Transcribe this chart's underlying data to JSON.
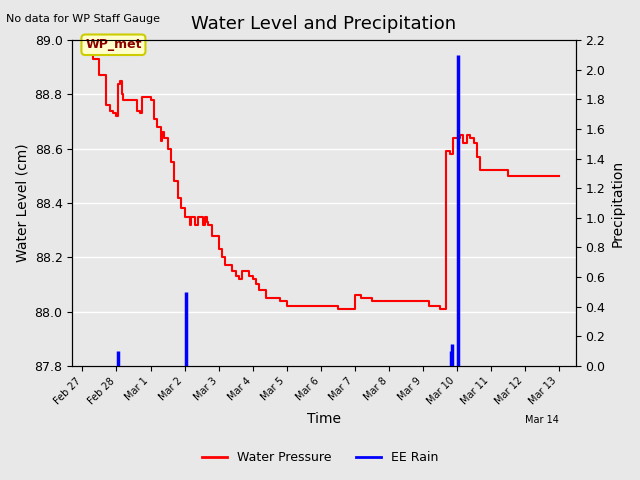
{
  "title": "Water Level and Precipitation",
  "top_left_text": "No data for WP Staff Gauge",
  "xlabel": "Time",
  "ylabel_left": "Water Level (cm)",
  "ylabel_right": "Precipitation",
  "wp_label": "WP_met",
  "ylim_left": [
    87.8,
    89.0
  ],
  "ylim_right": [
    0.0,
    2.2
  ],
  "background_color": "#e8e8e8",
  "water_pressure_color": "#ff0000",
  "ee_rain_color": "#0000ff",
  "legend_entries": [
    "Water Pressure",
    "EE Rain"
  ],
  "water_pressure_data": [
    [
      0.0,
      89.0
    ],
    [
      0.1,
      89.0
    ],
    [
      0.15,
      88.97
    ],
    [
      0.3,
      88.93
    ],
    [
      0.5,
      88.87
    ],
    [
      0.7,
      88.76
    ],
    [
      0.8,
      88.74
    ],
    [
      0.9,
      88.73
    ],
    [
      1.0,
      88.72
    ],
    [
      1.05,
      88.84
    ],
    [
      1.1,
      88.85
    ],
    [
      1.15,
      88.8
    ],
    [
      1.2,
      88.78
    ],
    [
      1.35,
      88.78
    ],
    [
      1.5,
      88.78
    ],
    [
      1.6,
      88.74
    ],
    [
      1.7,
      88.73
    ],
    [
      1.75,
      88.79
    ],
    [
      1.85,
      88.79
    ],
    [
      2.0,
      88.78
    ],
    [
      2.1,
      88.71
    ],
    [
      2.2,
      88.68
    ],
    [
      2.3,
      88.63
    ],
    [
      2.35,
      88.66
    ],
    [
      2.4,
      88.64
    ],
    [
      2.5,
      88.6
    ],
    [
      2.6,
      88.55
    ],
    [
      2.7,
      88.48
    ],
    [
      2.8,
      88.42
    ],
    [
      2.9,
      88.38
    ],
    [
      3.0,
      88.35
    ],
    [
      3.1,
      88.35
    ],
    [
      3.15,
      88.32
    ],
    [
      3.2,
      88.35
    ],
    [
      3.25,
      88.35
    ],
    [
      3.3,
      88.32
    ],
    [
      3.4,
      88.35
    ],
    [
      3.45,
      88.35
    ],
    [
      3.5,
      88.35
    ],
    [
      3.55,
      88.32
    ],
    [
      3.6,
      88.35
    ],
    [
      3.65,
      88.33
    ],
    [
      3.7,
      88.32
    ],
    [
      3.8,
      88.28
    ],
    [
      4.0,
      88.23
    ],
    [
      4.1,
      88.2
    ],
    [
      4.2,
      88.17
    ],
    [
      4.4,
      88.15
    ],
    [
      4.5,
      88.13
    ],
    [
      4.6,
      88.12
    ],
    [
      4.7,
      88.15
    ],
    [
      4.8,
      88.15
    ],
    [
      4.9,
      88.13
    ],
    [
      5.0,
      88.12
    ],
    [
      5.1,
      88.1
    ],
    [
      5.2,
      88.08
    ],
    [
      5.4,
      88.05
    ],
    [
      5.6,
      88.05
    ],
    [
      5.8,
      88.04
    ],
    [
      6.0,
      88.02
    ],
    [
      6.2,
      88.02
    ],
    [
      6.5,
      88.02
    ],
    [
      7.0,
      88.02
    ],
    [
      7.5,
      88.01
    ],
    [
      8.0,
      88.06
    ],
    [
      8.2,
      88.05
    ],
    [
      8.5,
      88.04
    ],
    [
      9.0,
      88.04
    ],
    [
      9.5,
      88.04
    ],
    [
      10.0,
      88.04
    ],
    [
      10.2,
      88.02
    ],
    [
      10.5,
      88.01
    ],
    [
      10.6,
      88.01
    ],
    [
      10.7,
      88.59
    ],
    [
      10.8,
      88.58
    ],
    [
      10.9,
      88.64
    ],
    [
      11.0,
      88.64
    ],
    [
      11.1,
      88.65
    ],
    [
      11.2,
      88.62
    ],
    [
      11.3,
      88.65
    ],
    [
      11.4,
      88.64
    ],
    [
      11.5,
      88.62
    ],
    [
      11.6,
      88.57
    ],
    [
      11.7,
      88.52
    ],
    [
      12.0,
      88.52
    ],
    [
      12.5,
      88.5
    ],
    [
      13.0,
      88.5
    ],
    [
      13.5,
      88.5
    ],
    [
      14.0,
      88.5
    ]
  ],
  "ee_rain_data": [
    [
      1.05,
      0.1
    ],
    [
      3.05,
      0.5
    ],
    [
      10.82,
      0.1
    ],
    [
      10.87,
      0.15
    ],
    [
      11.05,
      2.1
    ]
  ],
  "xtick_positions": [
    0,
    1,
    2,
    3,
    4,
    5,
    6,
    7,
    8,
    9,
    10,
    11,
    12,
    13,
    14
  ],
  "xtick_labels": [
    "Feb 27",
    "Feb 28",
    "Mar 1",
    "Mar 2",
    "Mar 3",
    "Mar 4",
    "Mar 5",
    "Mar 6",
    "Mar 7",
    "Mar 8",
    "Mar 9",
    "Mar 10",
    "Mar 11",
    "Mar 12",
    "Mar 13"
  ],
  "xlim": [
    -0.3,
    14.5
  ],
  "yticks_left": [
    87.8,
    88.0,
    88.2,
    88.4,
    88.6,
    88.8,
    89.0
  ],
  "yticks_right": [
    0.0,
    0.2,
    0.4,
    0.6,
    0.8,
    1.0,
    1.2,
    1.4,
    1.6,
    1.8,
    2.0,
    2.2
  ]
}
